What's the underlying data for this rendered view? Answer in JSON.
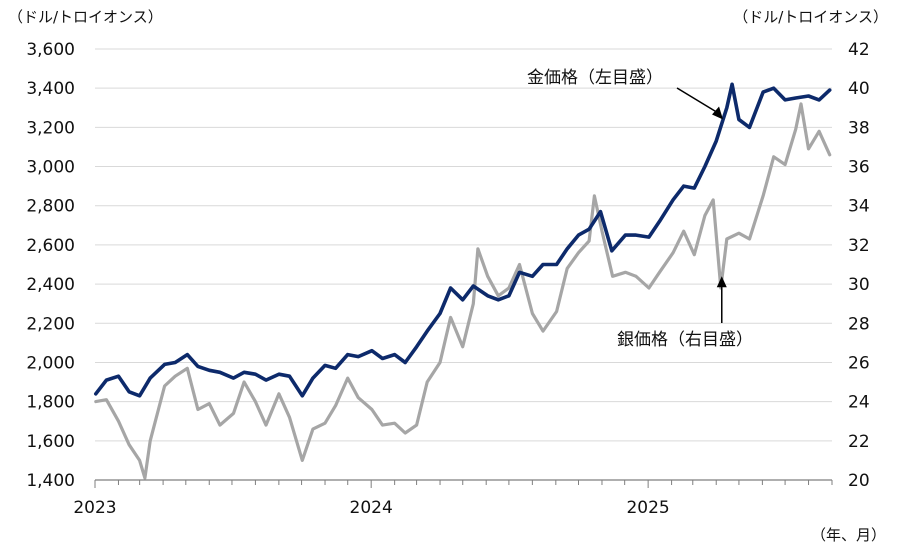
{
  "chart_data": {
    "type": "line",
    "left_axis": {
      "unit_label": "（ドル/トロイオンス）",
      "ylim": [
        1400,
        3600
      ],
      "ticks": [
        "1,400",
        "1,600",
        "1,800",
        "2,000",
        "2,200",
        "2,400",
        "2,600",
        "2,800",
        "3,000",
        "3,200",
        "3,400",
        "3,600"
      ],
      "tick_values": [
        1400,
        1600,
        1800,
        2000,
        2200,
        2400,
        2600,
        2800,
        3000,
        3200,
        3400,
        3600
      ]
    },
    "right_axis": {
      "unit_label": "（ドル/トロイオンス）",
      "ylim": [
        20,
        42
      ],
      "ticks": [
        "20",
        "22",
        "24",
        "26",
        "28",
        "30",
        "32",
        "34",
        "36",
        "38",
        "40",
        "42"
      ],
      "tick_values": [
        20,
        22,
        24,
        26,
        28,
        30,
        32,
        34,
        36,
        38,
        40,
        42
      ]
    },
    "x_axis": {
      "unit_label": "（年、月）",
      "range": [
        "2023-01",
        "2025-09"
      ],
      "ticks": [
        {
          "label": "2023",
          "value": "2023-01"
        },
        {
          "label": "2024",
          "value": "2024-01"
        },
        {
          "label": "2025",
          "value": "2025-01"
        }
      ]
    },
    "grid": true,
    "series": [
      {
        "name": "金価格（左目盛）",
        "axis": "left",
        "color": "#0d2a6b",
        "points": [
          [
            "2023-01-02",
            1840
          ],
          [
            "2023-01-16",
            1910
          ],
          [
            "2023-02-01",
            1930
          ],
          [
            "2023-02-15",
            1850
          ],
          [
            "2023-03-01",
            1830
          ],
          [
            "2023-03-15",
            1920
          ],
          [
            "2023-04-03",
            1990
          ],
          [
            "2023-04-17",
            2000
          ],
          [
            "2023-05-03",
            2040
          ],
          [
            "2023-05-17",
            1980
          ],
          [
            "2023-06-01",
            1960
          ],
          [
            "2023-06-15",
            1950
          ],
          [
            "2023-07-03",
            1920
          ],
          [
            "2023-07-17",
            1950
          ],
          [
            "2023-08-01",
            1940
          ],
          [
            "2023-08-15",
            1910
          ],
          [
            "2023-09-01",
            1940
          ],
          [
            "2023-09-15",
            1930
          ],
          [
            "2023-10-02",
            1830
          ],
          [
            "2023-10-16",
            1920
          ],
          [
            "2023-11-01",
            1985
          ],
          [
            "2023-11-15",
            1970
          ],
          [
            "2023-12-01",
            2040
          ],
          [
            "2023-12-15",
            2030
          ],
          [
            "2024-01-02",
            2060
          ],
          [
            "2024-01-16",
            2020
          ],
          [
            "2024-02-01",
            2040
          ],
          [
            "2024-02-15",
            2000
          ],
          [
            "2024-03-01",
            2080
          ],
          [
            "2024-03-15",
            2160
          ],
          [
            "2024-04-01",
            2250
          ],
          [
            "2024-04-15",
            2380
          ],
          [
            "2024-05-01",
            2320
          ],
          [
            "2024-05-15",
            2390
          ],
          [
            "2024-06-03",
            2340
          ],
          [
            "2024-06-17",
            2320
          ],
          [
            "2024-07-01",
            2340
          ],
          [
            "2024-07-15",
            2460
          ],
          [
            "2024-08-01",
            2440
          ],
          [
            "2024-08-15",
            2500
          ],
          [
            "2024-09-02",
            2500
          ],
          [
            "2024-09-16",
            2580
          ],
          [
            "2024-10-01",
            2650
          ],
          [
            "2024-10-15",
            2680
          ],
          [
            "2024-10-30",
            2770
          ],
          [
            "2024-11-14",
            2570
          ],
          [
            "2024-12-02",
            2650
          ],
          [
            "2024-12-16",
            2650
          ],
          [
            "2025-01-02",
            2640
          ],
          [
            "2025-01-16",
            2720
          ],
          [
            "2025-02-03",
            2830
          ],
          [
            "2025-02-17",
            2900
          ],
          [
            "2025-03-03",
            2890
          ],
          [
            "2025-03-17",
            3000
          ],
          [
            "2025-04-01",
            3130
          ],
          [
            "2025-04-15",
            3300
          ],
          [
            "2025-04-22",
            3420
          ],
          [
            "2025-05-01",
            3240
          ],
          [
            "2025-05-15",
            3200
          ],
          [
            "2025-06-02",
            3380
          ],
          [
            "2025-06-16",
            3400
          ],
          [
            "2025-07-01",
            3340
          ],
          [
            "2025-07-15",
            3350
          ],
          [
            "2025-08-01",
            3360
          ],
          [
            "2025-08-15",
            3340
          ],
          [
            "2025-08-29",
            3390
          ]
        ]
      },
      {
        "name": "銀価格（右目盛）",
        "axis": "right",
        "color": "#a6a6a6",
        "points": [
          [
            "2023-01-02",
            24.0
          ],
          [
            "2023-01-16",
            24.1
          ],
          [
            "2023-02-01",
            23.0
          ],
          [
            "2023-02-15",
            21.8
          ],
          [
            "2023-03-01",
            21.0
          ],
          [
            "2023-03-08",
            20.1
          ],
          [
            "2023-03-15",
            22.0
          ],
          [
            "2023-04-03",
            24.8
          ],
          [
            "2023-04-17",
            25.3
          ],
          [
            "2023-05-03",
            25.7
          ],
          [
            "2023-05-17",
            23.6
          ],
          [
            "2023-06-01",
            23.9
          ],
          [
            "2023-06-15",
            22.8
          ],
          [
            "2023-07-03",
            23.4
          ],
          [
            "2023-07-17",
            25.0
          ],
          [
            "2023-08-01",
            24.0
          ],
          [
            "2023-08-15",
            22.8
          ],
          [
            "2023-09-01",
            24.4
          ],
          [
            "2023-09-15",
            23.2
          ],
          [
            "2023-10-02",
            21.0
          ],
          [
            "2023-10-16",
            22.6
          ],
          [
            "2023-11-01",
            22.9
          ],
          [
            "2023-11-15",
            23.8
          ],
          [
            "2023-12-01",
            25.2
          ],
          [
            "2023-12-15",
            24.2
          ],
          [
            "2024-01-02",
            23.6
          ],
          [
            "2024-01-16",
            22.8
          ],
          [
            "2024-02-01",
            22.9
          ],
          [
            "2024-02-15",
            22.4
          ],
          [
            "2024-03-01",
            22.8
          ],
          [
            "2024-03-15",
            25.0
          ],
          [
            "2024-04-01",
            26.0
          ],
          [
            "2024-04-15",
            28.3
          ],
          [
            "2024-05-01",
            26.8
          ],
          [
            "2024-05-15",
            29.0
          ],
          [
            "2024-05-21",
            31.8
          ],
          [
            "2024-06-03",
            30.4
          ],
          [
            "2024-06-17",
            29.4
          ],
          [
            "2024-07-01",
            29.8
          ],
          [
            "2024-07-15",
            31.0
          ],
          [
            "2024-08-01",
            28.5
          ],
          [
            "2024-08-15",
            27.6
          ],
          [
            "2024-09-02",
            28.6
          ],
          [
            "2024-09-16",
            30.8
          ],
          [
            "2024-10-01",
            31.6
          ],
          [
            "2024-10-15",
            32.2
          ],
          [
            "2024-10-22",
            34.5
          ],
          [
            "2024-11-01",
            32.7
          ],
          [
            "2024-11-15",
            30.4
          ],
          [
            "2024-12-02",
            30.6
          ],
          [
            "2024-12-16",
            30.4
          ],
          [
            "2025-01-02",
            29.8
          ],
          [
            "2025-01-16",
            30.6
          ],
          [
            "2025-02-03",
            31.6
          ],
          [
            "2025-02-17",
            32.7
          ],
          [
            "2025-03-03",
            31.5
          ],
          [
            "2025-03-17",
            33.5
          ],
          [
            "2025-03-28",
            34.3
          ],
          [
            "2025-04-07",
            29.8
          ],
          [
            "2025-04-15",
            32.3
          ],
          [
            "2025-05-01",
            32.6
          ],
          [
            "2025-05-15",
            32.3
          ],
          [
            "2025-06-02",
            34.5
          ],
          [
            "2025-06-16",
            36.5
          ],
          [
            "2025-07-01",
            36.1
          ],
          [
            "2025-07-15",
            37.9
          ],
          [
            "2025-07-22",
            39.2
          ],
          [
            "2025-08-01",
            36.9
          ],
          [
            "2025-08-15",
            37.8
          ],
          [
            "2025-08-29",
            36.6
          ]
        ]
      }
    ],
    "annotations": [
      {
        "text": "金価格（左目盛）",
        "series": "金価格（左目盛）",
        "arrow_to": [
          "2025-04-10",
          3240
        ]
      },
      {
        "text": "銀価格（右目盛）",
        "series": "銀価格（右目盛）",
        "arrow_to": [
          "2025-04-07",
          30.4
        ]
      }
    ]
  }
}
